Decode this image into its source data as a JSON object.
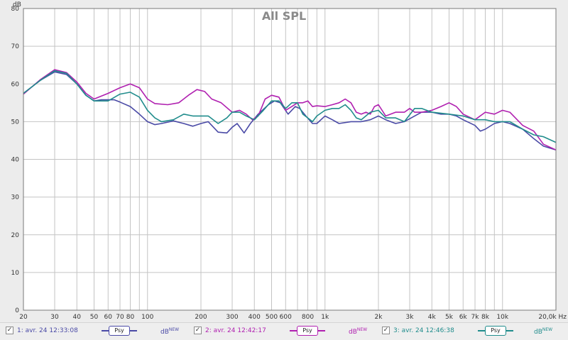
{
  "chart_data": {
    "type": "line",
    "title": "All SPL",
    "yunit": "dB",
    "xunit": "Hz",
    "xscale": "log",
    "xlim": [
      20,
      20000
    ],
    "ylim": [
      0,
      80
    ],
    "grid": true,
    "y_ticks": [
      "0",
      "10",
      "20",
      "30",
      "40",
      "50",
      "60",
      "70",
      "80"
    ],
    "x_ticks": [
      {
        "value": 20,
        "label": "20"
      },
      {
        "value": 30,
        "label": "30"
      },
      {
        "value": 40,
        "label": "40"
      },
      {
        "value": 50,
        "label": "50"
      },
      {
        "value": 60,
        "label": "60"
      },
      {
        "value": 70,
        "label": "70"
      },
      {
        "value": 80,
        "label": "80"
      },
      {
        "value": 100,
        "label": "100"
      },
      {
        "value": 200,
        "label": "200"
      },
      {
        "value": 300,
        "label": "300"
      },
      {
        "value": 400,
        "label": "400"
      },
      {
        "value": 500,
        "label": "500"
      },
      {
        "value": 600,
        "label": "600"
      },
      {
        "value": 800,
        "label": "800"
      },
      {
        "value": 1000,
        "label": "1k"
      },
      {
        "value": 2000,
        "label": "2k"
      },
      {
        "value": 3000,
        "label": "3k"
      },
      {
        "value": 4000,
        "label": "4k"
      },
      {
        "value": 5000,
        "label": "5k"
      },
      {
        "value": 6000,
        "label": "6k"
      },
      {
        "value": 7000,
        "label": "7k"
      },
      {
        "value": 8000,
        "label": "8k"
      },
      {
        "value": 10000,
        "label": "10k"
      },
      {
        "value": 20000,
        "label": "20,0k Hz"
      }
    ],
    "series": [
      {
        "name": "1: avr. 24 12:33:08",
        "color": "#4a4aa6",
        "points": [
          [
            20,
            57.5
          ],
          [
            25,
            61
          ],
          [
            30,
            63.2
          ],
          [
            35,
            62.5
          ],
          [
            40,
            60
          ],
          [
            45,
            57
          ],
          [
            50,
            55.5
          ],
          [
            55,
            55.8
          ],
          [
            65,
            55.8
          ],
          [
            70,
            55.2
          ],
          [
            80,
            54
          ],
          [
            90,
            52
          ],
          [
            100,
            50
          ],
          [
            110,
            49.2
          ],
          [
            120,
            49.5
          ],
          [
            140,
            50.2
          ],
          [
            160,
            49.5
          ],
          [
            180,
            48.8
          ],
          [
            200,
            49.5
          ],
          [
            220,
            50
          ],
          [
            250,
            47.2
          ],
          [
            280,
            47
          ],
          [
            300,
            48.5
          ],
          [
            320,
            49.5
          ],
          [
            350,
            47
          ],
          [
            380,
            49.5
          ],
          [
            420,
            52
          ],
          [
            480,
            54.5
          ],
          [
            520,
            55.5
          ],
          [
            560,
            55
          ],
          [
            620,
            52
          ],
          [
            680,
            54
          ],
          [
            720,
            53.5
          ],
          [
            780,
            51.5
          ],
          [
            850,
            49.5
          ],
          [
            900,
            49.5
          ],
          [
            1000,
            51.5
          ],
          [
            1100,
            50.5
          ],
          [
            1200,
            49.5
          ],
          [
            1400,
            50
          ],
          [
            1600,
            50
          ],
          [
            1800,
            50.5
          ],
          [
            2000,
            51.5
          ],
          [
            2200,
            50.5
          ],
          [
            2500,
            49.5
          ],
          [
            2800,
            50
          ],
          [
            3200,
            51.5
          ],
          [
            3500,
            52.5
          ],
          [
            4000,
            52.5
          ],
          [
            4500,
            52
          ],
          [
            5000,
            52
          ],
          [
            5500,
            51.5
          ],
          [
            6000,
            50.5
          ],
          [
            7000,
            49
          ],
          [
            7500,
            47.5
          ],
          [
            8000,
            48
          ],
          [
            9000,
            49.5
          ],
          [
            10000,
            50
          ],
          [
            11000,
            49.5
          ],
          [
            13000,
            48
          ],
          [
            15000,
            45.5
          ],
          [
            17000,
            43.5
          ],
          [
            20000,
            42.5
          ]
        ]
      },
      {
        "name": "2: avr. 24 12:42:17",
        "color": "#b020b0",
        "points": [
          [
            20,
            57.3
          ],
          [
            25,
            61.2
          ],
          [
            30,
            63.8
          ],
          [
            35,
            63
          ],
          [
            40,
            60.5
          ],
          [
            45,
            57.5
          ],
          [
            50,
            56
          ],
          [
            60,
            57.5
          ],
          [
            70,
            59
          ],
          [
            80,
            60
          ],
          [
            90,
            59
          ],
          [
            100,
            56
          ],
          [
            110,
            54.8
          ],
          [
            130,
            54.5
          ],
          [
            150,
            55
          ],
          [
            170,
            57
          ],
          [
            190,
            58.5
          ],
          [
            210,
            58
          ],
          [
            230,
            56
          ],
          [
            260,
            55
          ],
          [
            300,
            52.5
          ],
          [
            330,
            53
          ],
          [
            360,
            52
          ],
          [
            390,
            50.5
          ],
          [
            420,
            51.5
          ],
          [
            460,
            56
          ],
          [
            500,
            57
          ],
          [
            550,
            56.5
          ],
          [
            600,
            53
          ],
          [
            650,
            54
          ],
          [
            700,
            55
          ],
          [
            750,
            55
          ],
          [
            800,
            55.5
          ],
          [
            850,
            54
          ],
          [
            900,
            54.2
          ],
          [
            1000,
            54
          ],
          [
            1100,
            54.5
          ],
          [
            1200,
            55
          ],
          [
            1300,
            56
          ],
          [
            1400,
            55
          ],
          [
            1500,
            52.5
          ],
          [
            1600,
            52
          ],
          [
            1700,
            52.5
          ],
          [
            1800,
            52
          ],
          [
            1900,
            54
          ],
          [
            2000,
            54.5
          ],
          [
            2200,
            51.5
          ],
          [
            2500,
            52.5
          ],
          [
            2800,
            52.5
          ],
          [
            3000,
            53.5
          ],
          [
            3200,
            52.5
          ],
          [
            3500,
            52.5
          ],
          [
            4000,
            53
          ],
          [
            4500,
            54
          ],
          [
            5000,
            55
          ],
          [
            5500,
            54
          ],
          [
            6000,
            52
          ],
          [
            7000,
            50.5
          ],
          [
            8000,
            52.5
          ],
          [
            9000,
            52
          ],
          [
            10000,
            53
          ],
          [
            11000,
            52.5
          ],
          [
            13000,
            49
          ],
          [
            15000,
            47.5
          ],
          [
            17000,
            44
          ],
          [
            20000,
            42.5
          ]
        ]
      },
      {
        "name": "3: avr. 24 12:46:38",
        "color": "#208c8c",
        "points": [
          [
            20,
            57.5
          ],
          [
            25,
            61
          ],
          [
            30,
            63.5
          ],
          [
            35,
            62.8
          ],
          [
            40,
            60
          ],
          [
            45,
            57
          ],
          [
            50,
            55.5
          ],
          [
            60,
            55.5
          ],
          [
            70,
            57.3
          ],
          [
            80,
            57.8
          ],
          [
            90,
            56.5
          ],
          [
            100,
            53
          ],
          [
            110,
            51
          ],
          [
            120,
            50
          ],
          [
            140,
            50.5
          ],
          [
            160,
            52
          ],
          [
            180,
            51.5
          ],
          [
            200,
            51.5
          ],
          [
            220,
            51.5
          ],
          [
            250,
            49.5
          ],
          [
            280,
            51
          ],
          [
            300,
            52.5
          ],
          [
            330,
            52.5
          ],
          [
            360,
            51.5
          ],
          [
            400,
            50.5
          ],
          [
            450,
            53
          ],
          [
            500,
            55.5
          ],
          [
            550,
            55.5
          ],
          [
            600,
            53.5
          ],
          [
            650,
            55
          ],
          [
            700,
            55
          ],
          [
            750,
            52
          ],
          [
            800,
            51
          ],
          [
            850,
            50
          ],
          [
            900,
            51.5
          ],
          [
            1000,
            53
          ],
          [
            1100,
            53.5
          ],
          [
            1200,
            53.5
          ],
          [
            1300,
            54.5
          ],
          [
            1400,
            53
          ],
          [
            1500,
            51
          ],
          [
            1600,
            50.5
          ],
          [
            1800,
            52.5
          ],
          [
            2000,
            53
          ],
          [
            2200,
            51
          ],
          [
            2500,
            51
          ],
          [
            2800,
            50
          ],
          [
            3200,
            53.5
          ],
          [
            3500,
            53.5
          ],
          [
            4000,
            52.5
          ],
          [
            5000,
            52
          ],
          [
            6000,
            51.5
          ],
          [
            7000,
            50.5
          ],
          [
            8000,
            50.5
          ],
          [
            9000,
            50
          ],
          [
            10000,
            50
          ],
          [
            11000,
            50
          ],
          [
            13000,
            48
          ],
          [
            15000,
            46.5
          ],
          [
            17000,
            46
          ],
          [
            20000,
            44.5
          ]
        ]
      }
    ]
  },
  "legend": {
    "items": [
      {
        "checked": true,
        "label": "1: avr. 24 12:33:08",
        "psy": "Psy",
        "unit": "dB",
        "unit_sup": "NEW",
        "color": "#4a4aa6"
      },
      {
        "checked": true,
        "label": "2: avr. 24 12:42:17",
        "psy": "Psy",
        "unit": "dB",
        "unit_sup": "NEW",
        "color": "#b020b0"
      },
      {
        "checked": true,
        "label": "3: avr. 24 12:46:38",
        "psy": "Psy",
        "unit": "dB",
        "unit_sup": "NEW",
        "color": "#208c8c"
      }
    ]
  }
}
